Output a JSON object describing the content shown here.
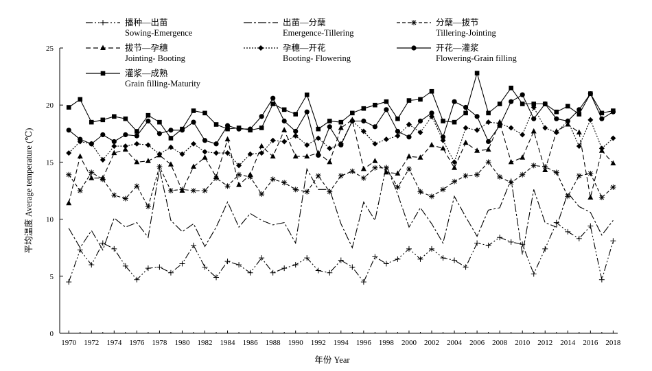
{
  "chart_data": {
    "type": "line",
    "title": "",
    "xlabel": "年份 Year",
    "ylabel": "平均温度 Average temperature (℃)",
    "xlim": [
      1969.2,
      2018.4
    ],
    "ylim": [
      0,
      25
    ],
    "yticks": [
      0,
      5,
      10,
      15,
      20,
      25
    ],
    "xticks": [
      1970,
      1972,
      1974,
      1976,
      1978,
      1980,
      1982,
      1984,
      1986,
      1988,
      1990,
      1992,
      1994,
      1996,
      1998,
      2000,
      2002,
      2004,
      2006,
      2008,
      2010,
      2012,
      2014,
      2016,
      2018
    ],
    "grid": false,
    "legend_position": "top",
    "years": [
      1970,
      1971,
      1972,
      1973,
      1974,
      1975,
      1976,
      1977,
      1978,
      1979,
      1980,
      1981,
      1982,
      1983,
      1984,
      1985,
      1986,
      1987,
      1988,
      1989,
      1990,
      1991,
      1992,
      1993,
      1994,
      1995,
      1996,
      1997,
      1998,
      1999,
      2000,
      2001,
      2002,
      2003,
      2004,
      2005,
      2006,
      2007,
      2008,
      2009,
      2010,
      2011,
      2012,
      2013,
      2014,
      2015,
      2016,
      2017,
      2018
    ],
    "series": [
      {
        "name_cn": "播种—出苗",
        "name_en": "Sowing-Emergence",
        "marker": "plus",
        "dash": "10 3 2 3 2 3",
        "values": [
          4.5,
          7.3,
          6.0,
          7.9,
          7.4,
          5.9,
          4.7,
          5.7,
          5.8,
          5.3,
          6.1,
          7.7,
          5.8,
          4.9,
          6.3,
          6.0,
          5.3,
          6.6,
          5.3,
          5.7,
          6.0,
          6.6,
          5.5,
          5.3,
          6.4,
          5.8,
          4.5,
          6.7,
          6.1,
          6.5,
          7.4,
          6.5,
          7.4,
          6.6,
          6.4,
          5.8,
          7.9,
          7.7,
          8.4,
          8.0,
          7.8,
          5.2,
          7.4,
          9.7,
          8.9,
          8.3,
          9.4,
          4.7,
          8.1
        ]
      },
      {
        "name_cn": "出苗—分蘖",
        "name_en": "Emergence-Tillering",
        "marker": "none",
        "dash": "12 3 3 3",
        "values": [
          9.2,
          7.5,
          9.0,
          7.3,
          10.1,
          9.3,
          9.7,
          8.4,
          14.4,
          9.9,
          8.9,
          9.6,
          7.6,
          9.3,
          11.5,
          9.3,
          10.5,
          9.9,
          9.5,
          9.7,
          7.9,
          14.4,
          12.6,
          12.6,
          9.6,
          7.5,
          11.5,
          9.9,
          14.7,
          12.2,
          9.3,
          11.0,
          9.6,
          7.9,
          12.0,
          10.2,
          8.5,
          10.8,
          11.0,
          13.5,
          6.9,
          12.6,
          9.7,
          9.3,
          12.3,
          11.1,
          10.6,
          8.6,
          9.9
        ]
      },
      {
        "name_cn": "分蘖—拔节",
        "name_en": "Tillering-Jointing",
        "marker": "asterisk",
        "dash": "5 3",
        "values": [
          13.9,
          12.5,
          14.1,
          13.5,
          12.1,
          11.8,
          12.9,
          11.1,
          14.6,
          12.5,
          12.6,
          12.5,
          12.5,
          13.6,
          12.9,
          13.9,
          13.7,
          12.2,
          13.5,
          13.2,
          12.6,
          12.4,
          13.8,
          12.4,
          13.8,
          14.2,
          13.6,
          14.5,
          14.5,
          12.8,
          14.4,
          12.4,
          12.0,
          12.6,
          13.3,
          13.8,
          13.9,
          15.0,
          13.7,
          13.2,
          13.9,
          14.7,
          14.6,
          14.1,
          12.0,
          13.8,
          14.0,
          11.9,
          12.8
        ]
      },
      {
        "name_cn": "拔节—孕穗",
        "name_en": "Jointing- Booting",
        "marker": "triangle",
        "dash": "7 4",
        "values": [
          11.4,
          15.5,
          13.6,
          13.6,
          15.8,
          16.1,
          15.0,
          15.1,
          15.6,
          14.8,
          12.5,
          14.6,
          15.4,
          13.7,
          17.0,
          13.0,
          13.9,
          16.4,
          15.5,
          17.8,
          15.5,
          15.5,
          15.8,
          15.0,
          18.0,
          18.7,
          14.4,
          15.1,
          14.1,
          14.0,
          15.5,
          15.4,
          16.5,
          16.2,
          14.5,
          16.7,
          16.0,
          16.1,
          18.5,
          15.0,
          15.4,
          17.7,
          14.3,
          17.7,
          18.3,
          17.6,
          11.9,
          16.0,
          14.9
        ]
      },
      {
        "name_cn": "孕穗—开花",
        "name_en": "Booting- Flowering",
        "marker": "diamond",
        "dash": "2 2",
        "values": [
          15.8,
          16.8,
          16.6,
          15.2,
          16.4,
          16.4,
          16.6,
          16.5,
          15.7,
          16.3,
          15.7,
          16.6,
          15.9,
          15.8,
          15.8,
          14.7,
          15.7,
          15.8,
          16.9,
          16.8,
          17.3,
          16.5,
          17.1,
          16.2,
          16.6,
          18.6,
          17.7,
          16.6,
          17.0,
          17.3,
          18.3,
          17.6,
          19.0,
          16.9,
          15.0,
          18.0,
          17.8,
          18.5,
          18.4,
          18.0,
          17.4,
          19.8,
          18.0,
          17.6,
          18.6,
          16.4,
          18.7,
          16.2,
          17.1
        ]
      },
      {
        "name_cn": "开花—灌浆",
        "name_en": "Flowering-Grain filling",
        "marker": "circle",
        "dash": "none",
        "values": [
          17.8,
          17.0,
          16.6,
          17.4,
          16.8,
          17.4,
          17.3,
          18.6,
          17.5,
          17.8,
          17.8,
          18.5,
          16.9,
          16.6,
          18.2,
          17.9,
          17.9,
          19.0,
          20.6,
          18.6,
          17.7,
          19.4,
          15.6,
          18.1,
          16.5,
          18.6,
          18.6,
          18.1,
          19.6,
          17.7,
          17.2,
          18.6,
          19.3,
          17.2,
          20.3,
          19.8,
          19.0,
          16.8,
          18.2,
          20.3,
          20.9,
          18.8,
          20.1,
          18.8,
          18.6,
          19.6,
          21.0,
          18.8,
          19.4
        ]
      },
      {
        "name_cn": "灌浆—成熟",
        "name_en": "Grain filling-Maturity",
        "marker": "square",
        "dash": "none",
        "values": [
          19.8,
          20.5,
          18.5,
          18.7,
          19.0,
          18.8,
          17.7,
          19.1,
          18.5,
          17.1,
          17.9,
          19.5,
          19.3,
          18.3,
          17.9,
          18.0,
          17.8,
          18.0,
          20.1,
          19.6,
          19.2,
          20.9,
          17.9,
          18.6,
          18.5,
          19.3,
          19.7,
          20.0,
          20.3,
          18.8,
          20.4,
          20.5,
          21.2,
          18.6,
          18.5,
          19.3,
          22.8,
          19.3,
          20.1,
          21.5,
          20.1,
          20.1,
          20.1,
          19.4,
          19.9,
          19.2,
          21.0,
          19.3,
          19.5
        ]
      }
    ]
  }
}
